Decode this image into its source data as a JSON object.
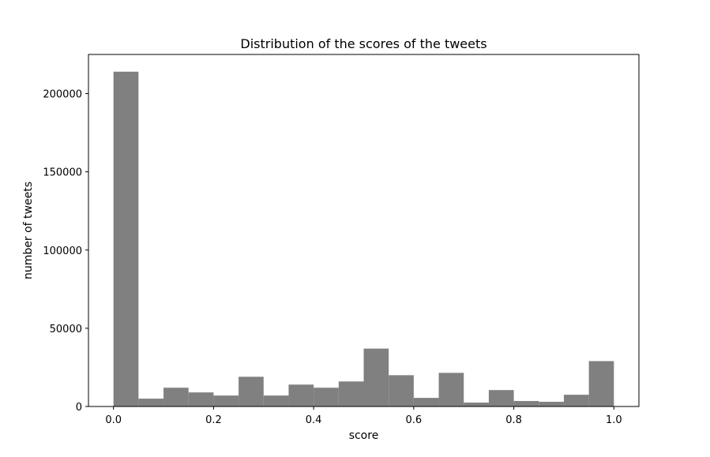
{
  "chart_data": {
    "type": "bar",
    "title": "Distribution of the scores of the tweets",
    "xlabel": "score",
    "ylabel": "number of tweets",
    "bin_edges": [
      0.0,
      0.05,
      0.1,
      0.15,
      0.2,
      0.25,
      0.3,
      0.35,
      0.4,
      0.45,
      0.5,
      0.55,
      0.6,
      0.65,
      0.7,
      0.75,
      0.8,
      0.85,
      0.9,
      0.95,
      1.0
    ],
    "values": [
      214000,
      5000,
      12000,
      9000,
      7000,
      19000,
      7000,
      14000,
      12000,
      16000,
      37000,
      20000,
      5500,
      21500,
      2500,
      10500,
      3500,
      3000,
      7500,
      29000
    ],
    "xlim": [
      -0.05,
      1.05
    ],
    "ylim": [
      0,
      225000
    ],
    "xticks": [
      0.0,
      0.2,
      0.4,
      0.6,
      0.8,
      1.0
    ],
    "xtick_labels": [
      "0.0",
      "0.2",
      "0.4",
      "0.6",
      "0.8",
      "1.0"
    ],
    "yticks": [
      0,
      50000,
      100000,
      150000,
      200000
    ],
    "ytick_labels": [
      "0",
      "50000",
      "100000",
      "150000",
      "200000"
    ],
    "bar_color": "#808080",
    "grid": false,
    "legend": "none"
  }
}
